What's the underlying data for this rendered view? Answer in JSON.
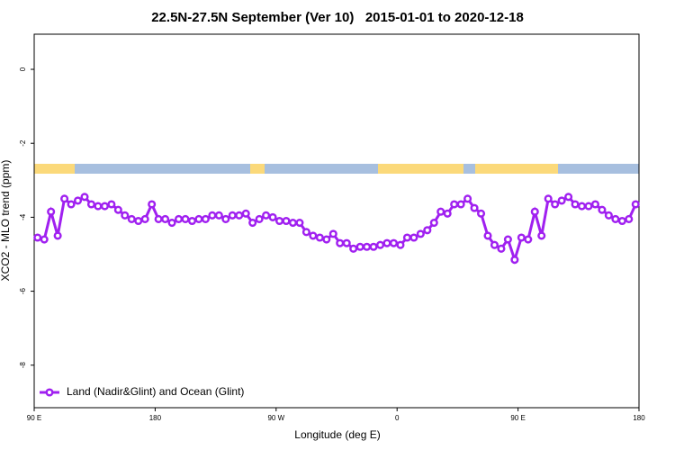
{
  "chart_data": {
    "type": "line",
    "title": "22.5N-27.5N September (Ver 10)   2015-01-01 to 2020-12-18",
    "xlabel": "Longitude (deg E)",
    "ylabel": "XCO2 - MLO trend (ppm)",
    "xlim": [
      90,
      540
    ],
    "xticks": [
      {
        "value": 90,
        "label": "90 E"
      },
      180,
      {
        "value": 270,
        "label": "90 W"
      },
      {
        "value": 360,
        "label": "0"
      },
      {
        "value": 450,
        "label": "90 E"
      },
      {
        "value": 540,
        "label": "180"
      }
    ],
    "ylim": [
      -9.15,
      0.95
    ],
    "yticks": [
      0,
      -2,
      -4,
      -6,
      -8
    ],
    "legend": "bottom-left",
    "x": [
      92.5,
      97.5,
      102.5,
      107.5,
      112.5,
      117.5,
      122.5,
      127.5,
      132.5,
      137.5,
      142.5,
      147.5,
      152.5,
      157.5,
      162.5,
      167.5,
      172.5,
      177.5,
      182.5,
      187.5,
      192.5,
      197.5,
      202.5,
      207.5,
      212.5,
      217.5,
      222.5,
      227.5,
      232.5,
      237.5,
      242.5,
      247.5,
      252.5,
      257.5,
      262.5,
      267.5,
      272.5,
      277.5,
      282.5,
      287.5,
      292.5,
      297.5,
      302.5,
      307.5,
      312.5,
      317.5,
      322.5,
      327.5,
      332.5,
      337.5,
      342.5,
      347.5,
      352.5,
      357.5,
      362.5,
      367.5,
      372.5,
      377.5,
      382.5,
      387.5,
      392.5,
      397.5,
      402.5,
      407.5,
      412.5,
      417.5,
      422.5,
      427.5,
      432.5,
      437.5,
      442.5,
      447.5,
      452.5,
      457.5,
      462.5,
      467.5,
      472.5,
      477.5,
      482.5,
      487.5,
      492.5,
      497.5,
      502.5,
      507.5,
      512.5,
      517.5,
      522.5,
      527.5,
      532.5,
      537.5
    ],
    "series": [
      {
        "name": "Land (Nadir&Glint) and Ocean (Glint)",
        "color": "#a020f0",
        "values": [
          -4.55,
          -4.6,
          -3.85,
          -4.5,
          -3.5,
          -3.65,
          -3.55,
          -3.45,
          -3.65,
          -3.7,
          -3.7,
          -3.65,
          -3.8,
          -3.95,
          -4.05,
          -4.1,
          -4.05,
          -3.65,
          -4.05,
          -4.05,
          -4.15,
          -4.05,
          -4.05,
          -4.1,
          -4.05,
          -4.05,
          -3.95,
          -3.95,
          -4.05,
          -3.95,
          -3.95,
          -3.9,
          -4.15,
          -4.05,
          -3.95,
          -4.0,
          -4.1,
          -4.1,
          -4.15,
          -4.15,
          -4.4,
          -4.5,
          -4.55,
          -4.6,
          -4.45,
          -4.7,
          -4.7,
          -4.85,
          -4.8,
          -4.8,
          -4.8,
          -4.75,
          -4.7,
          -4.7,
          -4.75,
          -4.55,
          -4.55,
          -4.45,
          -4.35,
          -4.15,
          -3.85,
          -3.9,
          -3.65,
          -3.65,
          -3.5,
          -3.75,
          -3.9,
          -4.5,
          -4.75,
          -4.85,
          -4.6,
          -5.15,
          -4.55,
          -4.6,
          -3.85,
          -4.5,
          -3.5,
          -3.65,
          -3.55,
          -3.45,
          -3.65,
          -3.7,
          -3.7,
          -3.65,
          -3.8,
          -3.95,
          -4.05,
          -4.1,
          -4.05,
          -3.65
        ]
      }
    ]
  }
}
